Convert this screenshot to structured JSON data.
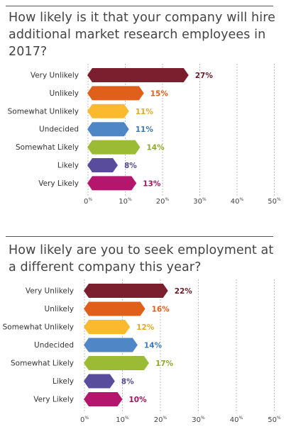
{
  "chart_data": [
    {
      "type": "bar",
      "orientation": "horizontal",
      "title": "How likely is it that your company will hire additional market research employees in 2017?",
      "categories": [
        "Very Unlikely",
        "Unlikely",
        "Somewhat Unlikely",
        "Undecided",
        "Somewhat Likely",
        "Likely",
        "Very Likely"
      ],
      "values": [
        27,
        15,
        11,
        11,
        14,
        8,
        13
      ],
      "value_labels": [
        "27%",
        "15%",
        "11%",
        "11%",
        "14%",
        "8%",
        "13%"
      ],
      "colors": [
        "#7b1f2e",
        "#e0601b",
        "#fbb92f",
        "#4f87c6",
        "#9bbb34",
        "#5a4c9c",
        "#b4166d"
      ],
      "label_colors": [
        "#6b1a26",
        "#d9601e",
        "#e2a826",
        "#3f78b8",
        "#8aab2a",
        "#544894",
        "#a0145f"
      ],
      "xlim": [
        0,
        50
      ],
      "xticks": [
        0,
        10,
        20,
        30,
        40,
        50
      ],
      "xtick_labels": [
        "0%",
        "10%",
        "20%",
        "30%",
        "40%",
        "50%"
      ],
      "grid": "dotted vertical",
      "bar_shape": "arrow-hexagon"
    },
    {
      "type": "bar",
      "orientation": "horizontal",
      "title": "How likely are you to seek employment at a different company this year?",
      "categories": [
        "Very Unlikely",
        "Unlikely",
        "Somewhat Unlikely",
        "Undecided",
        "Somewhat Likely",
        "Likely",
        "Very Likely"
      ],
      "values": [
        22,
        16,
        12,
        14,
        17,
        8,
        10
      ],
      "value_labels": [
        "22%",
        "16%",
        "12%",
        "14%",
        "17%",
        "8%",
        "10%"
      ],
      "colors": [
        "#7b1f2e",
        "#e0601b",
        "#fbb92f",
        "#4f87c6",
        "#9bbb34",
        "#5a4c9c",
        "#b4166d"
      ],
      "label_colors": [
        "#6b1a26",
        "#d9601e",
        "#e2a826",
        "#3f78b8",
        "#8aab2a",
        "#544894",
        "#a0145f"
      ],
      "xlim": [
        0,
        50
      ],
      "xticks": [
        0,
        10,
        20,
        30,
        40,
        50
      ],
      "xtick_labels": [
        "0%",
        "10%",
        "20%",
        "30%",
        "40%",
        "50%"
      ],
      "grid": "dotted vertical",
      "bar_shape": "arrow-hexagon"
    }
  ]
}
